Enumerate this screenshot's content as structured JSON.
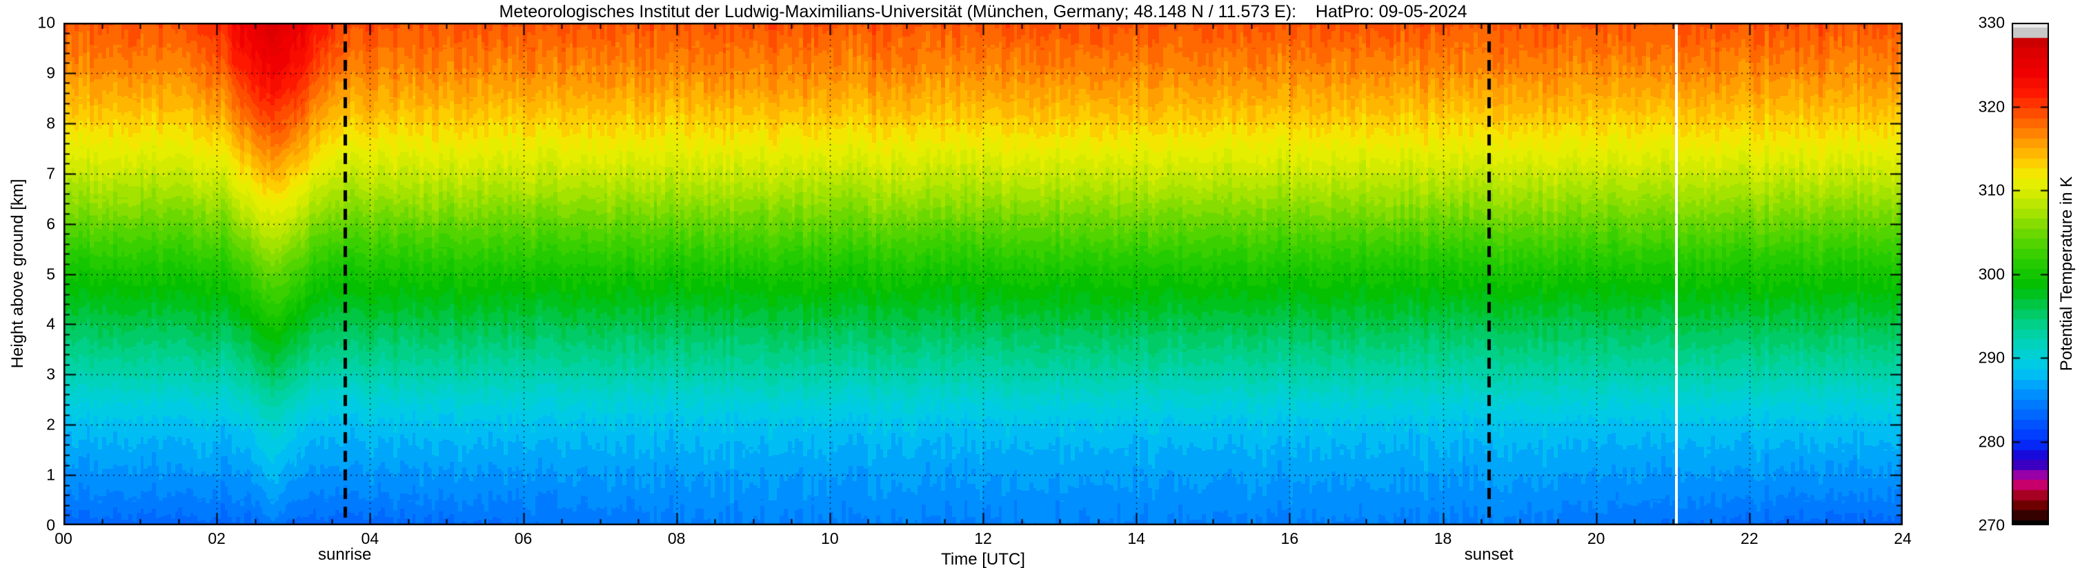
{
  "chart_data": {
    "type": "heatmap",
    "title": "Meteorologisches Institut der Ludwig-Maximilians-Universität (München, Germany; 48.148 N / 11.573 E):    HatPro: 09-05-2024",
    "xlabel": "Time [UTC]",
    "ylabel": "Height above ground [km]",
    "colorbar_label": "Potential Temperature in K",
    "x_range": [
      0,
      24
    ],
    "y_range": [
      0,
      10
    ],
    "z_range": [
      270,
      330
    ],
    "x_tick_values": [
      0,
      2,
      4,
      6,
      8,
      10,
      12,
      14,
      16,
      18,
      20,
      22,
      24
    ],
    "x_tick_labels": [
      "00",
      "02",
      "04",
      "06",
      "08",
      "10",
      "12",
      "14",
      "16",
      "18",
      "20",
      "22",
      "24"
    ],
    "x_minor_step": 0.5,
    "y_tick_values": [
      0,
      1,
      2,
      3,
      4,
      5,
      6,
      7,
      8,
      9,
      10
    ],
    "y_tick_labels": [
      "0",
      "1",
      "2",
      "3",
      "4",
      "5",
      "6",
      "7",
      "8",
      "9",
      "10"
    ],
    "y_minor_step": 0.2,
    "colorbar_tick_values": [
      270,
      280,
      290,
      300,
      310,
      320,
      330
    ],
    "colorbar_tick_labels": [
      "270",
      "280",
      "290",
      "300",
      "310",
      "320",
      "330"
    ],
    "grid_on": true,
    "colormap": [
      [
        270.0,
        "#000000"
      ],
      [
        271.6,
        "#460000"
      ],
      [
        273.0,
        "#8c0000"
      ],
      [
        274.4,
        "#c80050"
      ],
      [
        275.6,
        "#c800a0"
      ],
      [
        276.6,
        "#5000b4"
      ],
      [
        278.0,
        "#1e00d2"
      ],
      [
        280.0,
        "#0032ff"
      ],
      [
        283.0,
        "#0064ff"
      ],
      [
        286.0,
        "#0096ff"
      ],
      [
        288.5,
        "#00c8f0"
      ],
      [
        291.0,
        "#00d2c8"
      ],
      [
        293.5,
        "#00d296"
      ],
      [
        296.0,
        "#00c850"
      ],
      [
        298.5,
        "#00be00"
      ],
      [
        301.5,
        "#28cd00"
      ],
      [
        304.5,
        "#64d700"
      ],
      [
        307.0,
        "#a0e100"
      ],
      [
        309.5,
        "#d2eb00"
      ],
      [
        311.5,
        "#f0f000"
      ],
      [
        313.5,
        "#ffc800"
      ],
      [
        315.5,
        "#ffa000"
      ],
      [
        317.5,
        "#ff7300"
      ],
      [
        319.5,
        "#ff4600"
      ],
      [
        321.5,
        "#ff1900"
      ],
      [
        324.0,
        "#f00000"
      ],
      [
        327.0,
        "#d70000"
      ],
      [
        328.4,
        "#be0000"
      ],
      [
        328.8,
        "#c8c8c8"
      ],
      [
        330.0,
        "#ebebeb"
      ]
    ],
    "quantize_step": 1.2,
    "profile_heights": [
      0,
      0.5,
      1,
      1.5,
      2,
      2.5,
      3,
      3.5,
      4,
      4.5,
      5,
      5.5,
      6,
      6.5,
      7,
      7.5,
      8,
      8.5,
      9,
      9.5,
      10
    ],
    "profile_theta": [
      284.8,
      285.6,
      286.4,
      287.3,
      288.4,
      290.2,
      292.4,
      294.3,
      296.1,
      298.0,
      299.9,
      302.1,
      304.4,
      306.7,
      309.0,
      311.1,
      313.0,
      314.8,
      316.4,
      317.7,
      318.9
    ],
    "plume": {
      "time": 2.75,
      "sigma_base": 0.14,
      "sigma_per_km": 0.032,
      "amp_base": 1.2,
      "amp_per_km": 0.62
    },
    "night_cooling": {
      "amp": 1.7,
      "depth_km": 0.8,
      "day_center": 13.5,
      "half_day": 5,
      "ramp": 4.5
    },
    "noise_amp": 1.0,
    "data_gaps": [
      21.05
    ],
    "events": {
      "sunrise": {
        "time": 3.67,
        "label": "sunrise"
      },
      "sunset": {
        "time": 18.6,
        "label": "sunset"
      }
    }
  }
}
